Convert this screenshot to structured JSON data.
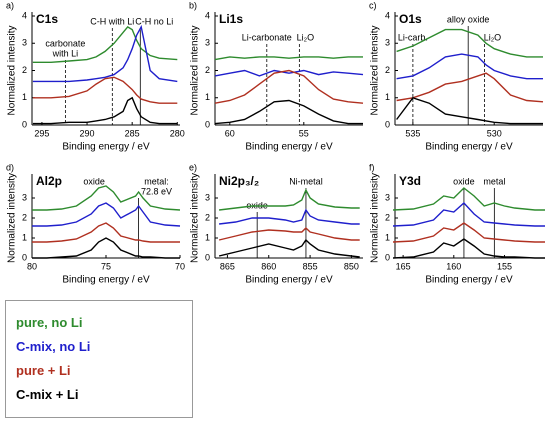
{
  "chart_data": [
    {
      "type": "line",
      "panel": "a)",
      "title": "C1s",
      "xlabel": "Binding energy / eV",
      "ylabel": "Normalized intensity",
      "x": [
        296,
        294,
        292,
        290,
        289,
        288,
        287,
        286,
        285.5,
        285,
        284.5,
        284,
        283,
        282,
        280
      ],
      "xlim": [
        296.1,
        279.7
      ],
      "xticks": [
        295,
        290,
        285,
        280
      ],
      "ylim": [
        0,
        4
      ],
      "yticks": [
        0,
        1,
        2,
        3,
        4
      ],
      "series": [
        {
          "name": "pure, no Li",
          "color": "#2e8b2e",
          "values": [
            2.3,
            2.3,
            2.35,
            2.4,
            2.5,
            2.7,
            3.0,
            3.4,
            3.6,
            3.5,
            3.1,
            2.8,
            2.55,
            2.45,
            2.4
          ]
        },
        {
          "name": "C-mix, no  Li",
          "color": "#1f1fcc",
          "values": [
            1.6,
            1.6,
            1.6,
            1.65,
            1.7,
            1.75,
            1.85,
            2.1,
            2.4,
            2.8,
            3.3,
            3.6,
            2.0,
            1.7,
            1.6
          ]
        },
        {
          "name": "pure + Li",
          "color": "#b03020",
          "values": [
            1.0,
            1.0,
            1.05,
            1.25,
            1.5,
            1.7,
            1.75,
            1.6,
            1.45,
            1.3,
            1.1,
            0.95,
            0.85,
            0.8,
            0.8
          ]
        },
        {
          "name": "C-mix + Li",
          "color": "#000000",
          "values": [
            0.05,
            0.05,
            0.1,
            0.1,
            0.15,
            0.2,
            0.3,
            0.5,
            0.9,
            1.0,
            0.6,
            0.3,
            0.1,
            0.05,
            0.05
          ]
        }
      ],
      "annotations": [
        {
          "x": 292.4,
          "style": "dashed",
          "label": [
            "carbonate",
            "with Li"
          ]
        },
        {
          "x": 287.2,
          "style": "dashed",
          "label": [
            "C-H with Li"
          ]
        },
        {
          "x": 284.1,
          "style": "solid",
          "label": [
            "C-H no Li"
          ]
        }
      ]
    },
    {
      "type": "line",
      "panel": "b)",
      "title": "Li1s",
      "xlabel": "Binding energy / eV",
      "ylabel": "Normalized intensity",
      "x": [
        61,
        60,
        59,
        58,
        57,
        56,
        55,
        54,
        53,
        52,
        51
      ],
      "xlim": [
        61,
        51
      ],
      "xticks": [
        60,
        55
      ],
      "ylim": [
        0,
        4
      ],
      "yticks": [
        0,
        1,
        2,
        3,
        4
      ],
      "series": [
        {
          "color": "#2e8b2e",
          "values": [
            2.4,
            2.5,
            2.45,
            2.5,
            2.5,
            2.45,
            2.5,
            2.5,
            2.45,
            2.5,
            2.5
          ]
        },
        {
          "color": "#1f1fcc",
          "values": [
            1.8,
            1.9,
            2.0,
            1.8,
            2.0,
            1.9,
            2.0,
            1.85,
            1.95,
            1.9,
            1.85
          ]
        },
        {
          "color": "#b03020",
          "values": [
            0.8,
            0.9,
            1.1,
            1.5,
            1.9,
            2.0,
            1.8,
            1.3,
            0.95,
            0.85,
            0.8
          ]
        },
        {
          "color": "#000000",
          "values": [
            0.05,
            0.1,
            0.2,
            0.5,
            0.85,
            0.9,
            0.7,
            0.4,
            0.15,
            0.05,
            0.05
          ]
        }
      ],
      "annotations": [
        {
          "x": 57.5,
          "style": "dashed",
          "label": [
            "Li-carbonate"
          ]
        },
        {
          "x": 55.3,
          "style": "dashed",
          "label": [
            "Li₂O"
          ]
        }
      ]
    },
    {
      "type": "line",
      "panel": "c)",
      "title": "O1s",
      "xlabel": "Binding energy / eV",
      "ylabel": "Normalized intensity",
      "x": [
        536,
        535,
        534,
        533,
        532,
        531,
        530.5,
        530,
        529,
        528,
        527
      ],
      "xlim": [
        536.1,
        527
      ],
      "xticks": [
        535,
        530
      ],
      "ylim": [
        0,
        4
      ],
      "yticks": [
        0,
        1,
        2,
        3,
        4
      ],
      "series": [
        {
          "color": "#2e8b2e",
          "values": [
            2.7,
            2.9,
            3.2,
            3.5,
            3.5,
            3.3,
            3.0,
            2.8,
            2.6,
            2.5,
            2.5
          ]
        },
        {
          "color": "#1f1fcc",
          "values": [
            1.7,
            1.8,
            2.1,
            2.5,
            2.6,
            2.5,
            2.2,
            2.0,
            1.8,
            1.7,
            1.7
          ]
        },
        {
          "color": "#b03020",
          "values": [
            0.9,
            1.0,
            1.2,
            1.5,
            1.6,
            1.8,
            1.9,
            1.7,
            1.1,
            0.9,
            0.85
          ]
        },
        {
          "color": "#000000",
          "values": [
            0.2,
            1.0,
            0.8,
            0.4,
            0.3,
            0.2,
            0.15,
            0.1,
            0.05,
            0.05,
            0.05
          ]
        }
      ],
      "annotations": [
        {
          "x": 535.0,
          "style": "dashed",
          "label": [
            "Li-carb."
          ]
        },
        {
          "x": 531.6,
          "style": "solid",
          "label": [
            "alloy oxide"
          ]
        },
        {
          "x": 530.6,
          "style": "dashed",
          "label": [
            "Li₂O"
          ]
        }
      ]
    },
    {
      "type": "line",
      "panel": "d)",
      "title": "Al2p",
      "xlabel": "Binding energy / eV",
      "ylabel": "Normalized intensity",
      "x": [
        80,
        79,
        78,
        77,
        76,
        75.5,
        75,
        74.5,
        74,
        73,
        72.8,
        72.5,
        72,
        71,
        70
      ],
      "xlim": [
        80,
        70
      ],
      "xticks": [
        80,
        75,
        70
      ],
      "ylim": [
        0,
        4
      ],
      "yticks": [
        0,
        1,
        2,
        3
      ],
      "series": [
        {
          "color": "#2e8b2e",
          "values": [
            2.4,
            2.4,
            2.45,
            2.6,
            3.1,
            3.5,
            3.6,
            3.3,
            2.8,
            3.1,
            3.3,
            3.0,
            2.6,
            2.45,
            2.4
          ]
        },
        {
          "color": "#1f1fcc",
          "values": [
            1.6,
            1.6,
            1.65,
            1.8,
            2.2,
            2.6,
            2.75,
            2.5,
            2.0,
            2.4,
            2.6,
            2.3,
            1.8,
            1.65,
            1.6
          ]
        },
        {
          "color": "#b03020",
          "values": [
            0.8,
            0.8,
            0.85,
            0.95,
            1.3,
            1.6,
            1.75,
            1.5,
            1.1,
            0.9,
            0.9,
            0.85,
            0.8,
            0.8,
            0.8
          ]
        },
        {
          "color": "#000000",
          "values": [
            0,
            0,
            0.05,
            0.1,
            0.4,
            0.8,
            1.0,
            0.8,
            0.4,
            0.1,
            0.1,
            0.05,
            0.05,
            0,
            0
          ]
        }
      ],
      "annotations": [
        {
          "x": 75.8,
          "style": "none",
          "label": [
            "oxide"
          ]
        },
        {
          "x": 72.8,
          "style": "solid",
          "label": [
            "metal:",
            "72.8 eV"
          ]
        }
      ]
    },
    {
      "type": "line",
      "panel": "e)",
      "title": "Ni2p₃/₂",
      "xlabel": "Binding energy / eV",
      "ylabel": "Normalized intensity",
      "x": [
        866,
        864,
        862,
        860,
        858,
        857,
        856,
        855.5,
        855,
        854,
        852,
        850,
        849
      ],
      "xlim": [
        866.5,
        848.6
      ],
      "xticks": [
        865,
        860,
        855,
        850
      ],
      "ylim": [
        0,
        4
      ],
      "yticks": [
        0,
        1,
        2,
        3
      ],
      "series": [
        {
          "color": "#2e8b2e",
          "values": [
            2.4,
            2.5,
            2.6,
            2.6,
            2.6,
            2.65,
            2.9,
            3.4,
            3.0,
            2.7,
            2.55,
            2.5,
            2.5
          ]
        },
        {
          "color": "#1f1fcc",
          "values": [
            1.7,
            1.8,
            2.0,
            2.0,
            1.9,
            1.8,
            1.9,
            2.4,
            2.1,
            1.9,
            1.8,
            1.7,
            1.7
          ]
        },
        {
          "color": "#b03020",
          "values": [
            0.9,
            1.1,
            1.3,
            1.4,
            1.35,
            1.3,
            1.3,
            1.5,
            1.3,
            1.2,
            1.0,
            0.9,
            0.9
          ]
        },
        {
          "color": "#000000",
          "values": [
            0.1,
            0.3,
            0.5,
            0.7,
            0.5,
            0.4,
            0.6,
            0.9,
            0.7,
            0.4,
            0.2,
            0.1,
            0.05
          ]
        }
      ],
      "annotations": [
        {
          "x": 861.4,
          "style": "solid",
          "label": [
            "oxide"
          ]
        },
        {
          "x": 855.5,
          "style": "solid",
          "label": [
            "Ni-metal"
          ]
        }
      ]
    },
    {
      "type": "line",
      "panel": "f)",
      "title": "Y3d",
      "xlabel": "Binding energy / eV",
      "ylabel": "Normalized intensity",
      "x": [
        166,
        164,
        162,
        161,
        160,
        159,
        158,
        157,
        156,
        155,
        154,
        152,
        151
      ],
      "xlim": [
        165.8,
        151.2
      ],
      "xticks": [
        165,
        160,
        155
      ],
      "ylim": [
        0,
        4
      ],
      "yticks": [
        0,
        1,
        2,
        3
      ],
      "series": [
        {
          "color": "#2e8b2e",
          "values": [
            2.4,
            2.45,
            2.7,
            3.1,
            3.0,
            3.5,
            3.1,
            2.6,
            2.75,
            2.6,
            2.5,
            2.4,
            2.4
          ]
        },
        {
          "color": "#1f1fcc",
          "values": [
            1.6,
            1.65,
            1.9,
            2.4,
            2.3,
            2.75,
            2.2,
            1.8,
            1.75,
            1.7,
            1.65,
            1.6,
            1.6
          ]
        },
        {
          "color": "#b03020",
          "values": [
            0.8,
            0.85,
            1.1,
            1.5,
            1.4,
            1.75,
            1.4,
            1.0,
            0.95,
            0.9,
            0.85,
            0.8,
            0.8
          ]
        },
        {
          "color": "#000000",
          "values": [
            0,
            0.05,
            0.3,
            0.75,
            0.6,
            0.95,
            0.6,
            0.2,
            0.1,
            0.05,
            0.05,
            0,
            0
          ]
        }
      ],
      "annotations": [
        {
          "x": 159,
          "style": "solid",
          "label": [
            "oxide"
          ]
        },
        {
          "x": 156,
          "style": "solid",
          "label": [
            "metal"
          ]
        }
      ]
    }
  ]
}
